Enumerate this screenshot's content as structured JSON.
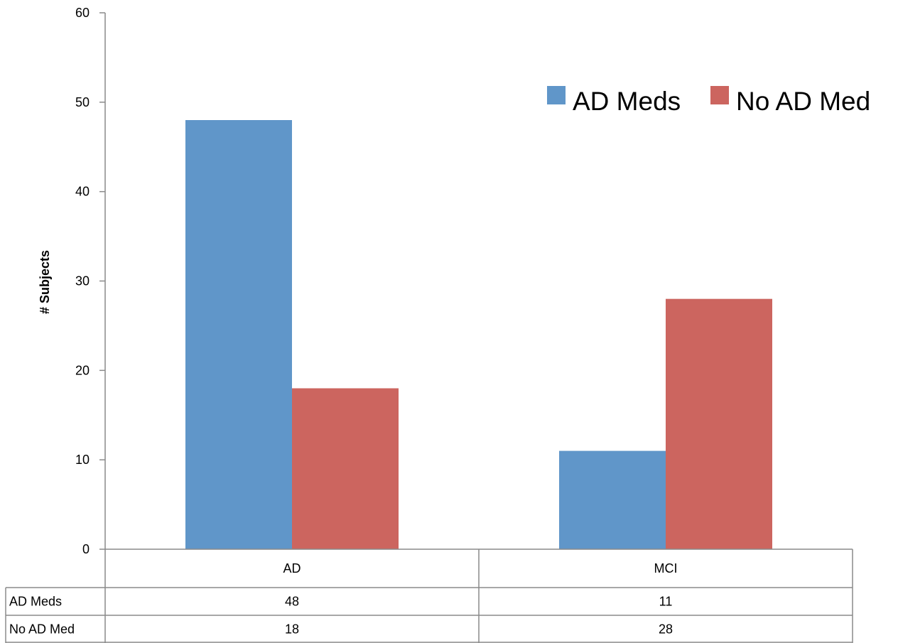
{
  "chart_data": {
    "type": "bar",
    "title": "",
    "xlabel": "",
    "ylabel": "# Subjects",
    "ylim": [
      0,
      60
    ],
    "yticks": [
      0,
      10,
      20,
      30,
      40,
      50,
      60
    ],
    "categories": [
      "AD",
      "MCI"
    ],
    "series": [
      {
        "name": "AD Meds",
        "values": [
          48,
          11
        ],
        "color": "#6096C9"
      },
      {
        "name": "No AD Med",
        "values": [
          18,
          28
        ],
        "color": "#CC655F"
      }
    ],
    "legend_position": "top-right",
    "grid": false,
    "data_table": true
  }
}
